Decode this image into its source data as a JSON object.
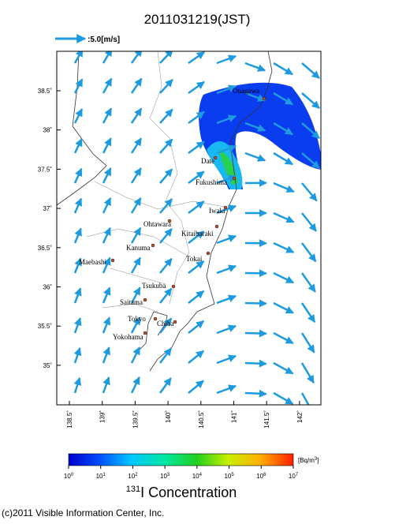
{
  "header": {
    "title": "2011031219(JST)",
    "wind_legend": ":5.0[m/s]"
  },
  "map": {
    "lat_ticks": [
      {
        "value": 38.5,
        "label": "38.5˚"
      },
      {
        "value": 38,
        "label": "38˚"
      },
      {
        "value": 37.5,
        "label": "37.5˚"
      },
      {
        "value": 37,
        "label": "37˚"
      },
      {
        "value": 36.5,
        "label": "36.5˚"
      },
      {
        "value": 36,
        "label": "36˚"
      },
      {
        "value": 35.5,
        "label": "35.5˚"
      },
      {
        "value": 35,
        "label": "35˚"
      }
    ],
    "lon_ticks": [
      {
        "value": 138.5,
        "label": "138.5˚"
      },
      {
        "value": 139,
        "label": "139˚"
      },
      {
        "value": 139.5,
        "label": "139.5˚"
      },
      {
        "value": 140,
        "label": "140˚"
      },
      {
        "value": 140.5,
        "label": "140.5˚"
      },
      {
        "value": 141,
        "label": "141˚"
      },
      {
        "value": 141.5,
        "label": "141.5˚"
      },
      {
        "value": 142,
        "label": "142˚"
      }
    ],
    "cities": [
      "Onagawa",
      "Date",
      "Fukushima",
      "Iwaki",
      "Ohtawara",
      "Kitaibaraki",
      "Kanuma",
      "Tokai",
      "Maebashi",
      "Tsukuba",
      "Saitama",
      "Tokyo",
      "Chiba",
      "Yokohama"
    ]
  },
  "colorbar": {
    "ticks": [
      {
        "base": "10",
        "exponent": "0"
      },
      {
        "base": "10",
        "exponent": "1"
      },
      {
        "base": "10",
        "exponent": "2"
      },
      {
        "base": "10",
        "exponent": "3"
      },
      {
        "base": "10",
        "exponent": "4"
      },
      {
        "base": "10",
        "exponent": "5"
      },
      {
        "base": "10",
        "exponent": "6"
      },
      {
        "base": "10",
        "exponent": "7"
      }
    ],
    "unit": {
      "text": "[Bq/m",
      "exponent": "3",
      "close": "]"
    },
    "label": {
      "isotope": "131",
      "text": "I Concentration"
    }
  },
  "footer": {
    "copyright": "(c)2011 Visible Information Center, Inc."
  }
}
